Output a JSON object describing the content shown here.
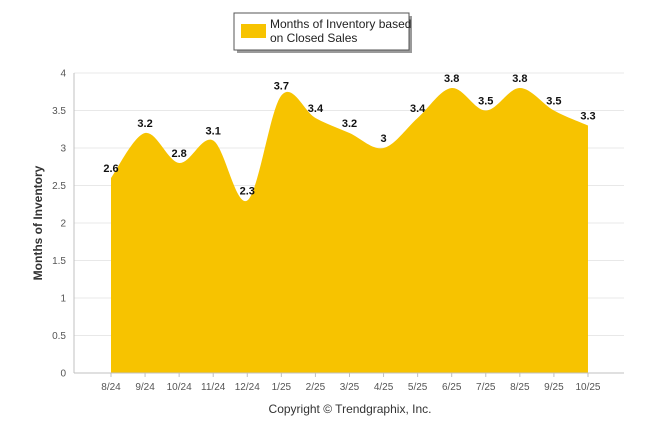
{
  "chart_data": {
    "type": "area",
    "categories": [
      "8/24",
      "9/24",
      "10/24",
      "11/24",
      "12/24",
      "1/25",
      "2/25",
      "3/25",
      "4/25",
      "5/25",
      "6/25",
      "7/25",
      "8/25",
      "9/25",
      "10/25"
    ],
    "series": [
      {
        "name": "Months of Inventory based on Closed Sales",
        "name_lines": [
          "Months of Inventory based",
          "on Closed Sales"
        ],
        "values": [
          2.6,
          3.2,
          2.8,
          3.1,
          2.3,
          3.7,
          3.4,
          3.2,
          3,
          3.4,
          3.8,
          3.5,
          3.8,
          3.5,
          3.3
        ],
        "labels": [
          "2.6",
          "3.2",
          "2.8",
          "3.1",
          "2.3",
          "3.7",
          "3.4",
          "3.2",
          "3",
          "3.4",
          "3.8",
          "3.5",
          "3.8",
          "3.5",
          "3.3"
        ],
        "color": "#F7C300"
      }
    ],
    "ylabel": "Months of Inventory",
    "ylim": [
      0,
      4
    ],
    "yticks": [
      0,
      0.5,
      1,
      1.5,
      2,
      2.5,
      3,
      3.5,
      4
    ],
    "ytick_labels": [
      "0",
      "0.5",
      "1",
      "1.5",
      "2",
      "2.5",
      "3",
      "3.5",
      "4"
    ],
    "grid": true,
    "legend_position": "top-center",
    "footer": "Copyright © Trendgraphix, Inc."
  },
  "colors": {
    "area": "#F7C300",
    "grid": "#e8e8e8",
    "axis": "#c0c0c0"
  }
}
